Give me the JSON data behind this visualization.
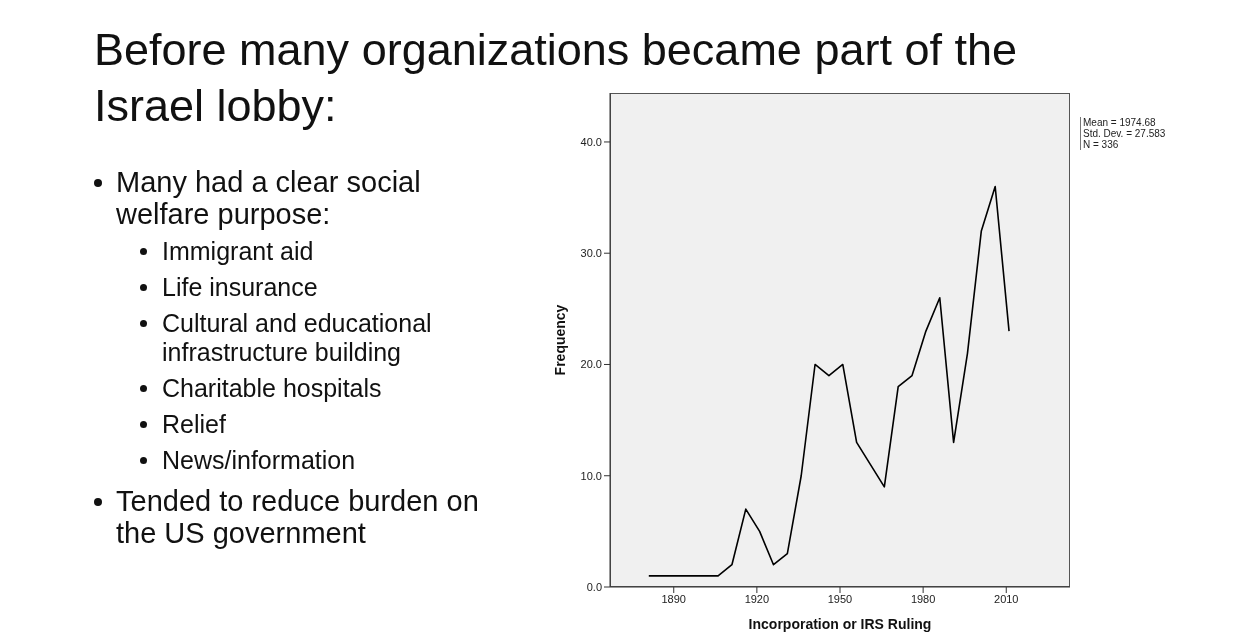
{
  "chart_data": {
    "type": "line",
    "title": "Before many organizations became part of the Israel lobby:",
    "xlabel": "Incorporation or IRS Ruling",
    "ylabel": "Frequency",
    "x": [
      1881,
      1886,
      1891,
      1896,
      1901,
      1906,
      1911,
      1916,
      1921,
      1926,
      1931,
      1936,
      1941,
      1946,
      1951,
      1956,
      1961,
      1966,
      1971,
      1976,
      1981,
      1986,
      1991,
      1996,
      2001,
      2006,
      2011
    ],
    "series": [
      {
        "color": "#000000",
        "values": [
          1,
          1,
          1,
          1,
          1,
          1,
          2,
          7,
          5,
          2,
          3,
          10,
          20,
          19,
          20,
          13,
          11,
          9,
          18,
          19,
          23,
          26,
          13,
          21,
          32,
          36,
          23
        ]
      }
    ],
    "xlim": [
      1867,
      2033
    ],
    "xticks": [
      1890,
      1920,
      1950,
      1980,
      2010
    ],
    "ylim": [
      0,
      44.4
    ],
    "yticks": [
      {
        "value": 0,
        "label": "0.0"
      },
      {
        "value": 10,
        "label": "10.0"
      },
      {
        "value": 20,
        "label": "20.0"
      },
      {
        "value": 30,
        "label": "30.0"
      },
      {
        "value": 40,
        "label": "40.0"
      }
    ],
    "grid": false,
    "legend": false,
    "marker": "none",
    "line_style": "solid",
    "annotations": [
      "Many had a clear social welfare purpose:",
      "Immigrant aid",
      "Life insurance",
      "Cultural and educational infrastructure building",
      "Charitable hospitals",
      "Relief",
      "News/information",
      "Tended to reduce burden on the US government",
      "Mean = 1974.68",
      "Std. Dev. = 27.583",
      "N = 336"
    ]
  }
}
